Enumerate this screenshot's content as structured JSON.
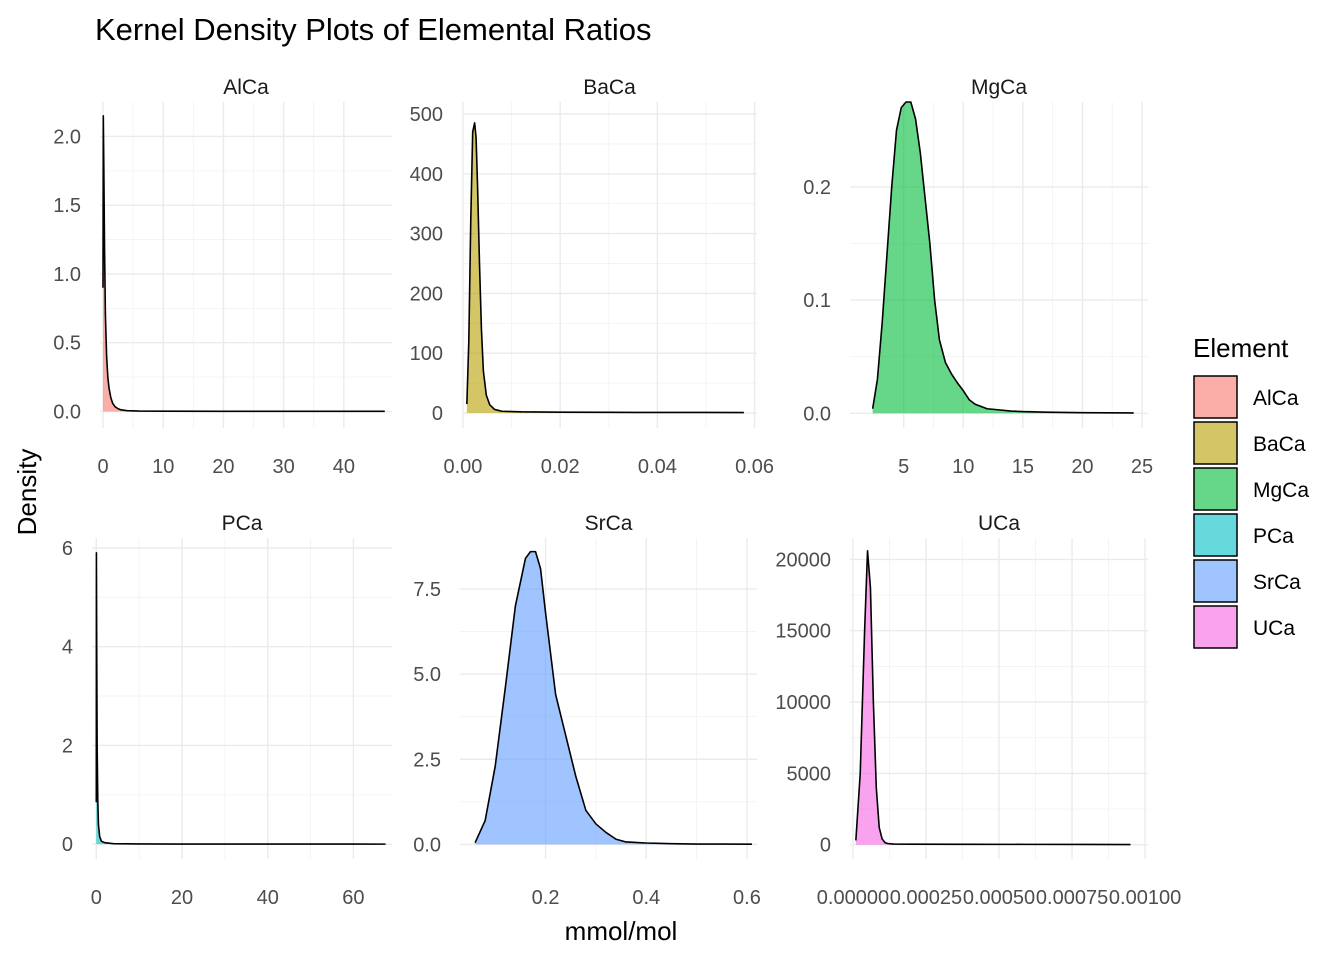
{
  "title": "Kernel Density Plots of Elemental Ratios",
  "xlabel": "mmol/mol",
  "ylabel": "Density",
  "legend": {
    "title": "Element",
    "items": [
      {
        "label": "AlCa",
        "color": "#F8766D"
      },
      {
        "label": "BaCa",
        "color": "#B79F00"
      },
      {
        "label": "MgCa",
        "color": "#00BA38"
      },
      {
        "label": "PCa",
        "color": "#00BFC4"
      },
      {
        "label": "SrCa",
        "color": "#619CFF"
      },
      {
        "label": "UCa",
        "color": "#F564E3"
      }
    ]
  },
  "chart_data": {
    "type": "area",
    "title": "Kernel Density Plots of Elemental Ratios",
    "xlabel": "mmol/mol",
    "ylabel": "Density",
    "legend_position": "right",
    "grid": true,
    "fill_alpha": 0.6,
    "facets": [
      {
        "name": "AlCa",
        "color": "#F8766D",
        "xlim": [
          -0.5,
          48
        ],
        "ylim": [
          -0.12,
          2.25
        ],
        "xticks": [
          0,
          10,
          20,
          30,
          40
        ],
        "xtick_labels": [
          "0",
          "10",
          "20",
          "30",
          "40"
        ],
        "yticks": [
          0,
          0.5,
          1.0,
          1.5,
          2.0
        ],
        "ytick_labels": [
          "0.0",
          "0.5",
          "1.0",
          "1.5",
          "2.0"
        ],
        "x": [
          0,
          0.05,
          0.15,
          0.25,
          0.4,
          0.6,
          0.8,
          1.0,
          1.3,
          1.6,
          2.0,
          2.5,
          3.0,
          4.0,
          6.0,
          10.0,
          20.0,
          30.0,
          40.0,
          46.8
        ],
        "y": [
          0.9,
          2.15,
          1.7,
          1.2,
          0.7,
          0.4,
          0.25,
          0.17,
          0.1,
          0.06,
          0.035,
          0.02,
          0.012,
          0.006,
          0.003,
          0.002,
          0.001,
          0.001,
          0.001,
          0.001
        ]
      },
      {
        "name": "BaCa",
        "color": "#B79F00",
        "xlim": [
          -0.0002,
          0.0605
        ],
        "ylim": [
          -25,
          520
        ],
        "xticks": [
          0,
          0.02,
          0.04,
          0.06
        ],
        "xtick_labels": [
          "0.00",
          "0.02",
          "0.04",
          "0.06"
        ],
        "yticks": [
          0,
          100,
          200,
          300,
          400,
          500
        ],
        "ytick_labels": [
          "0",
          "100",
          "200",
          "300",
          "400",
          "500"
        ],
        "x": [
          0.0008,
          0.0012,
          0.0016,
          0.002,
          0.0024,
          0.0027,
          0.003,
          0.0034,
          0.0038,
          0.0042,
          0.0048,
          0.0055,
          0.0065,
          0.008,
          0.012,
          0.02,
          0.03,
          0.04,
          0.05,
          0.0578
        ],
        "y": [
          15,
          120,
          320,
          470,
          485,
          460,
          380,
          250,
          140,
          70,
          30,
          14,
          6,
          3,
          2,
          1.5,
          1.2,
          1,
          1,
          0.8
        ]
      },
      {
        "name": "MgCa",
        "color": "#00BA38",
        "xlim": [
          0.5,
          25.5
        ],
        "ylim": [
          -0.013,
          0.275
        ],
        "xticks": [
          5,
          10,
          15,
          20,
          25
        ],
        "xtick_labels": [
          "5",
          "10",
          "15",
          "20",
          "25"
        ],
        "yticks": [
          0,
          0.1,
          0.2
        ],
        "ytick_labels": [
          "0.0",
          "0.1",
          "0.2"
        ],
        "x": [
          2.4,
          2.8,
          3.2,
          3.6,
          4.0,
          4.4,
          4.8,
          5.2,
          5.6,
          6.0,
          6.4,
          6.8,
          7.2,
          7.6,
          8.0,
          8.5,
          9.0,
          9.5,
          10.0,
          10.5,
          11.0,
          11.5,
          12.0,
          13.0,
          14.0,
          15.0,
          17.0,
          20.0,
          24.3
        ],
        "y": [
          0.004,
          0.03,
          0.08,
          0.14,
          0.2,
          0.25,
          0.27,
          0.275,
          0.275,
          0.26,
          0.23,
          0.19,
          0.15,
          0.1,
          0.065,
          0.045,
          0.035,
          0.027,
          0.02,
          0.012,
          0.008,
          0.006,
          0.004,
          0.003,
          0.002,
          0.0015,
          0.001,
          0.0005,
          0.0003
        ]
      },
      {
        "name": "PCa",
        "color": "#00BFC4",
        "xlim": [
          -1,
          69
        ],
        "ylim": [
          -0.3,
          6.2
        ],
        "xticks": [
          0,
          20,
          40,
          60
        ],
        "xtick_labels": [
          "0",
          "20",
          "40",
          "60"
        ],
        "yticks": [
          0,
          2,
          4,
          6
        ],
        "ytick_labels": [
          "0",
          "2",
          "4",
          "6"
        ],
        "x": [
          0,
          0.03,
          0.1,
          0.2,
          0.35,
          0.5,
          0.8,
          1.2,
          2.0,
          4.0,
          10.0,
          20.0,
          40.0,
          60.0,
          67.5
        ],
        "y": [
          0.85,
          5.9,
          4.0,
          2.0,
          0.9,
          0.4,
          0.15,
          0.06,
          0.03,
          0.01,
          0.005,
          0.003,
          0.002,
          0.002,
          0.001
        ]
      },
      {
        "name": "SrCa",
        "color": "#619CFF",
        "xlim": [
          0.03,
          0.62
        ],
        "ylim": [
          -0.43,
          9.0
        ],
        "xticks": [
          0.2,
          0.4,
          0.6
        ],
        "xtick_labels": [
          "0.2",
          "0.4",
          "0.6"
        ],
        "yticks": [
          0,
          2.5,
          5.0,
          7.5
        ],
        "ytick_labels": [
          "0.0",
          "2.5",
          "5.0",
          "7.5"
        ],
        "x": [
          0.06,
          0.08,
          0.1,
          0.12,
          0.14,
          0.16,
          0.17,
          0.18,
          0.19,
          0.2,
          0.22,
          0.24,
          0.26,
          0.28,
          0.3,
          0.32,
          0.34,
          0.36,
          0.4,
          0.45,
          0.5,
          0.55,
          0.61
        ],
        "y": [
          0.05,
          0.7,
          2.3,
          4.6,
          7.0,
          8.4,
          8.6,
          8.6,
          8.1,
          6.8,
          4.4,
          3.2,
          2.0,
          1.0,
          0.6,
          0.35,
          0.15,
          0.07,
          0.04,
          0.02,
          0.01,
          0.01,
          0.005
        ]
      },
      {
        "name": "UCa",
        "color": "#F564E3",
        "xlim": [
          -1e-05,
          0.00101
        ],
        "ylim": [
          -1000,
          21500
        ],
        "xticks": [
          0,
          0.00025,
          0.0005,
          0.00075,
          0.001
        ],
        "xtick_labels": [
          "0.00000",
          "0.00025",
          "0.00050",
          "0.00075",
          "0.00100"
        ],
        "yticks": [
          0,
          5000,
          10000,
          15000,
          20000
        ],
        "ytick_labels": [
          "0",
          "5000",
          "10000",
          "15000",
          "20000"
        ],
        "x": [
          1e-05,
          2.5e-05,
          4e-05,
          5e-05,
          6e-05,
          7e-05,
          8e-05,
          9e-05,
          0.0001,
          0.00011,
          0.00012,
          0.00014,
          0.0002,
          0.0004,
          0.0006,
          0.0008,
          0.00095
        ],
        "y": [
          300,
          5000,
          15000,
          20600,
          18000,
          10000,
          4000,
          1200,
          400,
          150,
          80,
          50,
          40,
          30,
          25,
          20,
          15
        ]
      }
    ]
  }
}
